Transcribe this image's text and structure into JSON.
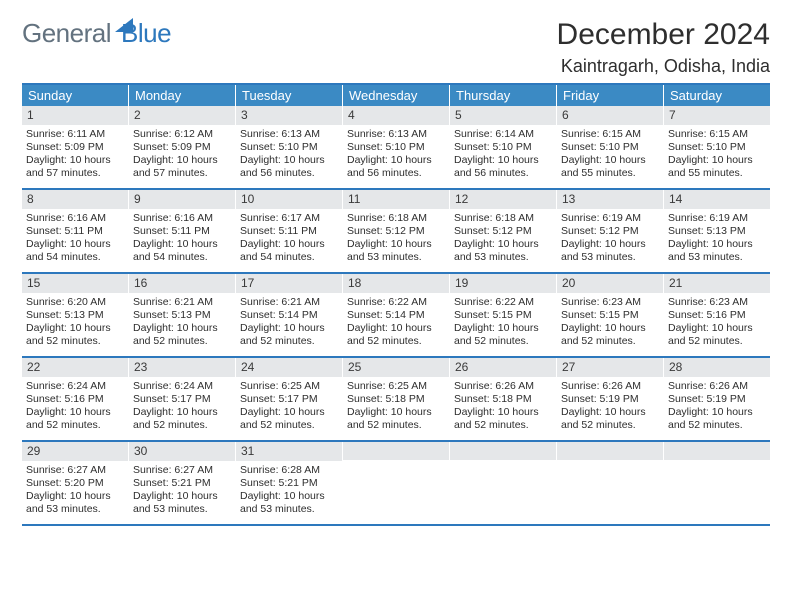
{
  "logo": {
    "part1": "General",
    "part2": "Blue"
  },
  "title": "December 2024",
  "location": "Kaintragarh, Odisha, India",
  "colors": {
    "header_bg": "#3b8ac4",
    "border": "#2d78bd",
    "daybar": "#e5e7e9",
    "text": "#2e2e2e"
  },
  "weekdays": [
    "Sunday",
    "Monday",
    "Tuesday",
    "Wednesday",
    "Thursday",
    "Friday",
    "Saturday"
  ],
  "weeks": [
    [
      {
        "n": "1",
        "sr": "Sunrise: 6:11 AM",
        "ss": "Sunset: 5:09 PM",
        "dl": "Daylight: 10 hours and 57 minutes."
      },
      {
        "n": "2",
        "sr": "Sunrise: 6:12 AM",
        "ss": "Sunset: 5:09 PM",
        "dl": "Daylight: 10 hours and 57 minutes."
      },
      {
        "n": "3",
        "sr": "Sunrise: 6:13 AM",
        "ss": "Sunset: 5:10 PM",
        "dl": "Daylight: 10 hours and 56 minutes."
      },
      {
        "n": "4",
        "sr": "Sunrise: 6:13 AM",
        "ss": "Sunset: 5:10 PM",
        "dl": "Daylight: 10 hours and 56 minutes."
      },
      {
        "n": "5",
        "sr": "Sunrise: 6:14 AM",
        "ss": "Sunset: 5:10 PM",
        "dl": "Daylight: 10 hours and 56 minutes."
      },
      {
        "n": "6",
        "sr": "Sunrise: 6:15 AM",
        "ss": "Sunset: 5:10 PM",
        "dl": "Daylight: 10 hours and 55 minutes."
      },
      {
        "n": "7",
        "sr": "Sunrise: 6:15 AM",
        "ss": "Sunset: 5:10 PM",
        "dl": "Daylight: 10 hours and 55 minutes."
      }
    ],
    [
      {
        "n": "8",
        "sr": "Sunrise: 6:16 AM",
        "ss": "Sunset: 5:11 PM",
        "dl": "Daylight: 10 hours and 54 minutes."
      },
      {
        "n": "9",
        "sr": "Sunrise: 6:16 AM",
        "ss": "Sunset: 5:11 PM",
        "dl": "Daylight: 10 hours and 54 minutes."
      },
      {
        "n": "10",
        "sr": "Sunrise: 6:17 AM",
        "ss": "Sunset: 5:11 PM",
        "dl": "Daylight: 10 hours and 54 minutes."
      },
      {
        "n": "11",
        "sr": "Sunrise: 6:18 AM",
        "ss": "Sunset: 5:12 PM",
        "dl": "Daylight: 10 hours and 53 minutes."
      },
      {
        "n": "12",
        "sr": "Sunrise: 6:18 AM",
        "ss": "Sunset: 5:12 PM",
        "dl": "Daylight: 10 hours and 53 minutes."
      },
      {
        "n": "13",
        "sr": "Sunrise: 6:19 AM",
        "ss": "Sunset: 5:12 PM",
        "dl": "Daylight: 10 hours and 53 minutes."
      },
      {
        "n": "14",
        "sr": "Sunrise: 6:19 AM",
        "ss": "Sunset: 5:13 PM",
        "dl": "Daylight: 10 hours and 53 minutes."
      }
    ],
    [
      {
        "n": "15",
        "sr": "Sunrise: 6:20 AM",
        "ss": "Sunset: 5:13 PM",
        "dl": "Daylight: 10 hours and 52 minutes."
      },
      {
        "n": "16",
        "sr": "Sunrise: 6:21 AM",
        "ss": "Sunset: 5:13 PM",
        "dl": "Daylight: 10 hours and 52 minutes."
      },
      {
        "n": "17",
        "sr": "Sunrise: 6:21 AM",
        "ss": "Sunset: 5:14 PM",
        "dl": "Daylight: 10 hours and 52 minutes."
      },
      {
        "n": "18",
        "sr": "Sunrise: 6:22 AM",
        "ss": "Sunset: 5:14 PM",
        "dl": "Daylight: 10 hours and 52 minutes."
      },
      {
        "n": "19",
        "sr": "Sunrise: 6:22 AM",
        "ss": "Sunset: 5:15 PM",
        "dl": "Daylight: 10 hours and 52 minutes."
      },
      {
        "n": "20",
        "sr": "Sunrise: 6:23 AM",
        "ss": "Sunset: 5:15 PM",
        "dl": "Daylight: 10 hours and 52 minutes."
      },
      {
        "n": "21",
        "sr": "Sunrise: 6:23 AM",
        "ss": "Sunset: 5:16 PM",
        "dl": "Daylight: 10 hours and 52 minutes."
      }
    ],
    [
      {
        "n": "22",
        "sr": "Sunrise: 6:24 AM",
        "ss": "Sunset: 5:16 PM",
        "dl": "Daylight: 10 hours and 52 minutes."
      },
      {
        "n": "23",
        "sr": "Sunrise: 6:24 AM",
        "ss": "Sunset: 5:17 PM",
        "dl": "Daylight: 10 hours and 52 minutes."
      },
      {
        "n": "24",
        "sr": "Sunrise: 6:25 AM",
        "ss": "Sunset: 5:17 PM",
        "dl": "Daylight: 10 hours and 52 minutes."
      },
      {
        "n": "25",
        "sr": "Sunrise: 6:25 AM",
        "ss": "Sunset: 5:18 PM",
        "dl": "Daylight: 10 hours and 52 minutes."
      },
      {
        "n": "26",
        "sr": "Sunrise: 6:26 AM",
        "ss": "Sunset: 5:18 PM",
        "dl": "Daylight: 10 hours and 52 minutes."
      },
      {
        "n": "27",
        "sr": "Sunrise: 6:26 AM",
        "ss": "Sunset: 5:19 PM",
        "dl": "Daylight: 10 hours and 52 minutes."
      },
      {
        "n": "28",
        "sr": "Sunrise: 6:26 AM",
        "ss": "Sunset: 5:19 PM",
        "dl": "Daylight: 10 hours and 52 minutes."
      }
    ],
    [
      {
        "n": "29",
        "sr": "Sunrise: 6:27 AM",
        "ss": "Sunset: 5:20 PM",
        "dl": "Daylight: 10 hours and 53 minutes."
      },
      {
        "n": "30",
        "sr": "Sunrise: 6:27 AM",
        "ss": "Sunset: 5:21 PM",
        "dl": "Daylight: 10 hours and 53 minutes."
      },
      {
        "n": "31",
        "sr": "Sunrise: 6:28 AM",
        "ss": "Sunset: 5:21 PM",
        "dl": "Daylight: 10 hours and 53 minutes."
      },
      {
        "n": "",
        "sr": "",
        "ss": "",
        "dl": ""
      },
      {
        "n": "",
        "sr": "",
        "ss": "",
        "dl": ""
      },
      {
        "n": "",
        "sr": "",
        "ss": "",
        "dl": ""
      },
      {
        "n": "",
        "sr": "",
        "ss": "",
        "dl": ""
      }
    ]
  ]
}
